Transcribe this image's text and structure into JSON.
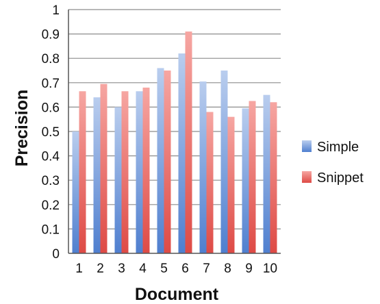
{
  "chart_data": {
    "type": "bar",
    "title": "",
    "xlabel": "Document",
    "ylabel": "Precision",
    "categories": [
      "1",
      "2",
      "3",
      "4",
      "5",
      "6",
      "7",
      "8",
      "9",
      "10"
    ],
    "series": [
      {
        "name": "Simple",
        "color": "#7ba2dc",
        "values": [
          0.5,
          0.64,
          0.6,
          0.665,
          0.76,
          0.82,
          0.705,
          0.75,
          0.595,
          0.65
        ]
      },
      {
        "name": "Snippet",
        "color": "#ee7b76",
        "values": [
          0.665,
          0.695,
          0.665,
          0.68,
          0.75,
          0.91,
          0.58,
          0.56,
          0.625,
          0.62
        ]
      }
    ],
    "ylim": [
      0,
      1
    ],
    "yticks": [
      "0",
      "0.1",
      "0.2",
      "0.3",
      "0.4",
      "0.5",
      "0.6",
      "0.7",
      "0.8",
      "0.9",
      "1"
    ],
    "grid": true,
    "legend_position": "right"
  }
}
